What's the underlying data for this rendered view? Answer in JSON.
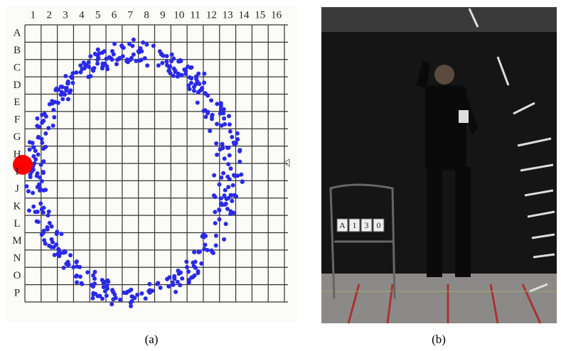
{
  "panel_a": {
    "column_labels": [
      "1",
      "2",
      "3",
      "4",
      "5",
      "6",
      "7",
      "8",
      "9",
      "10",
      "11",
      "12",
      "13",
      "14",
      "15",
      "16"
    ],
    "row_labels": [
      "A",
      "B",
      "C",
      "D",
      "E",
      "F",
      "G",
      "H",
      "I",
      "J",
      "K",
      "L",
      "M",
      "N",
      "O",
      "P"
    ],
    "caption": "(a)"
  },
  "panel_b": {
    "sign": [
      "A",
      "1",
      "3",
      "0"
    ],
    "caption": "(b)"
  }
}
